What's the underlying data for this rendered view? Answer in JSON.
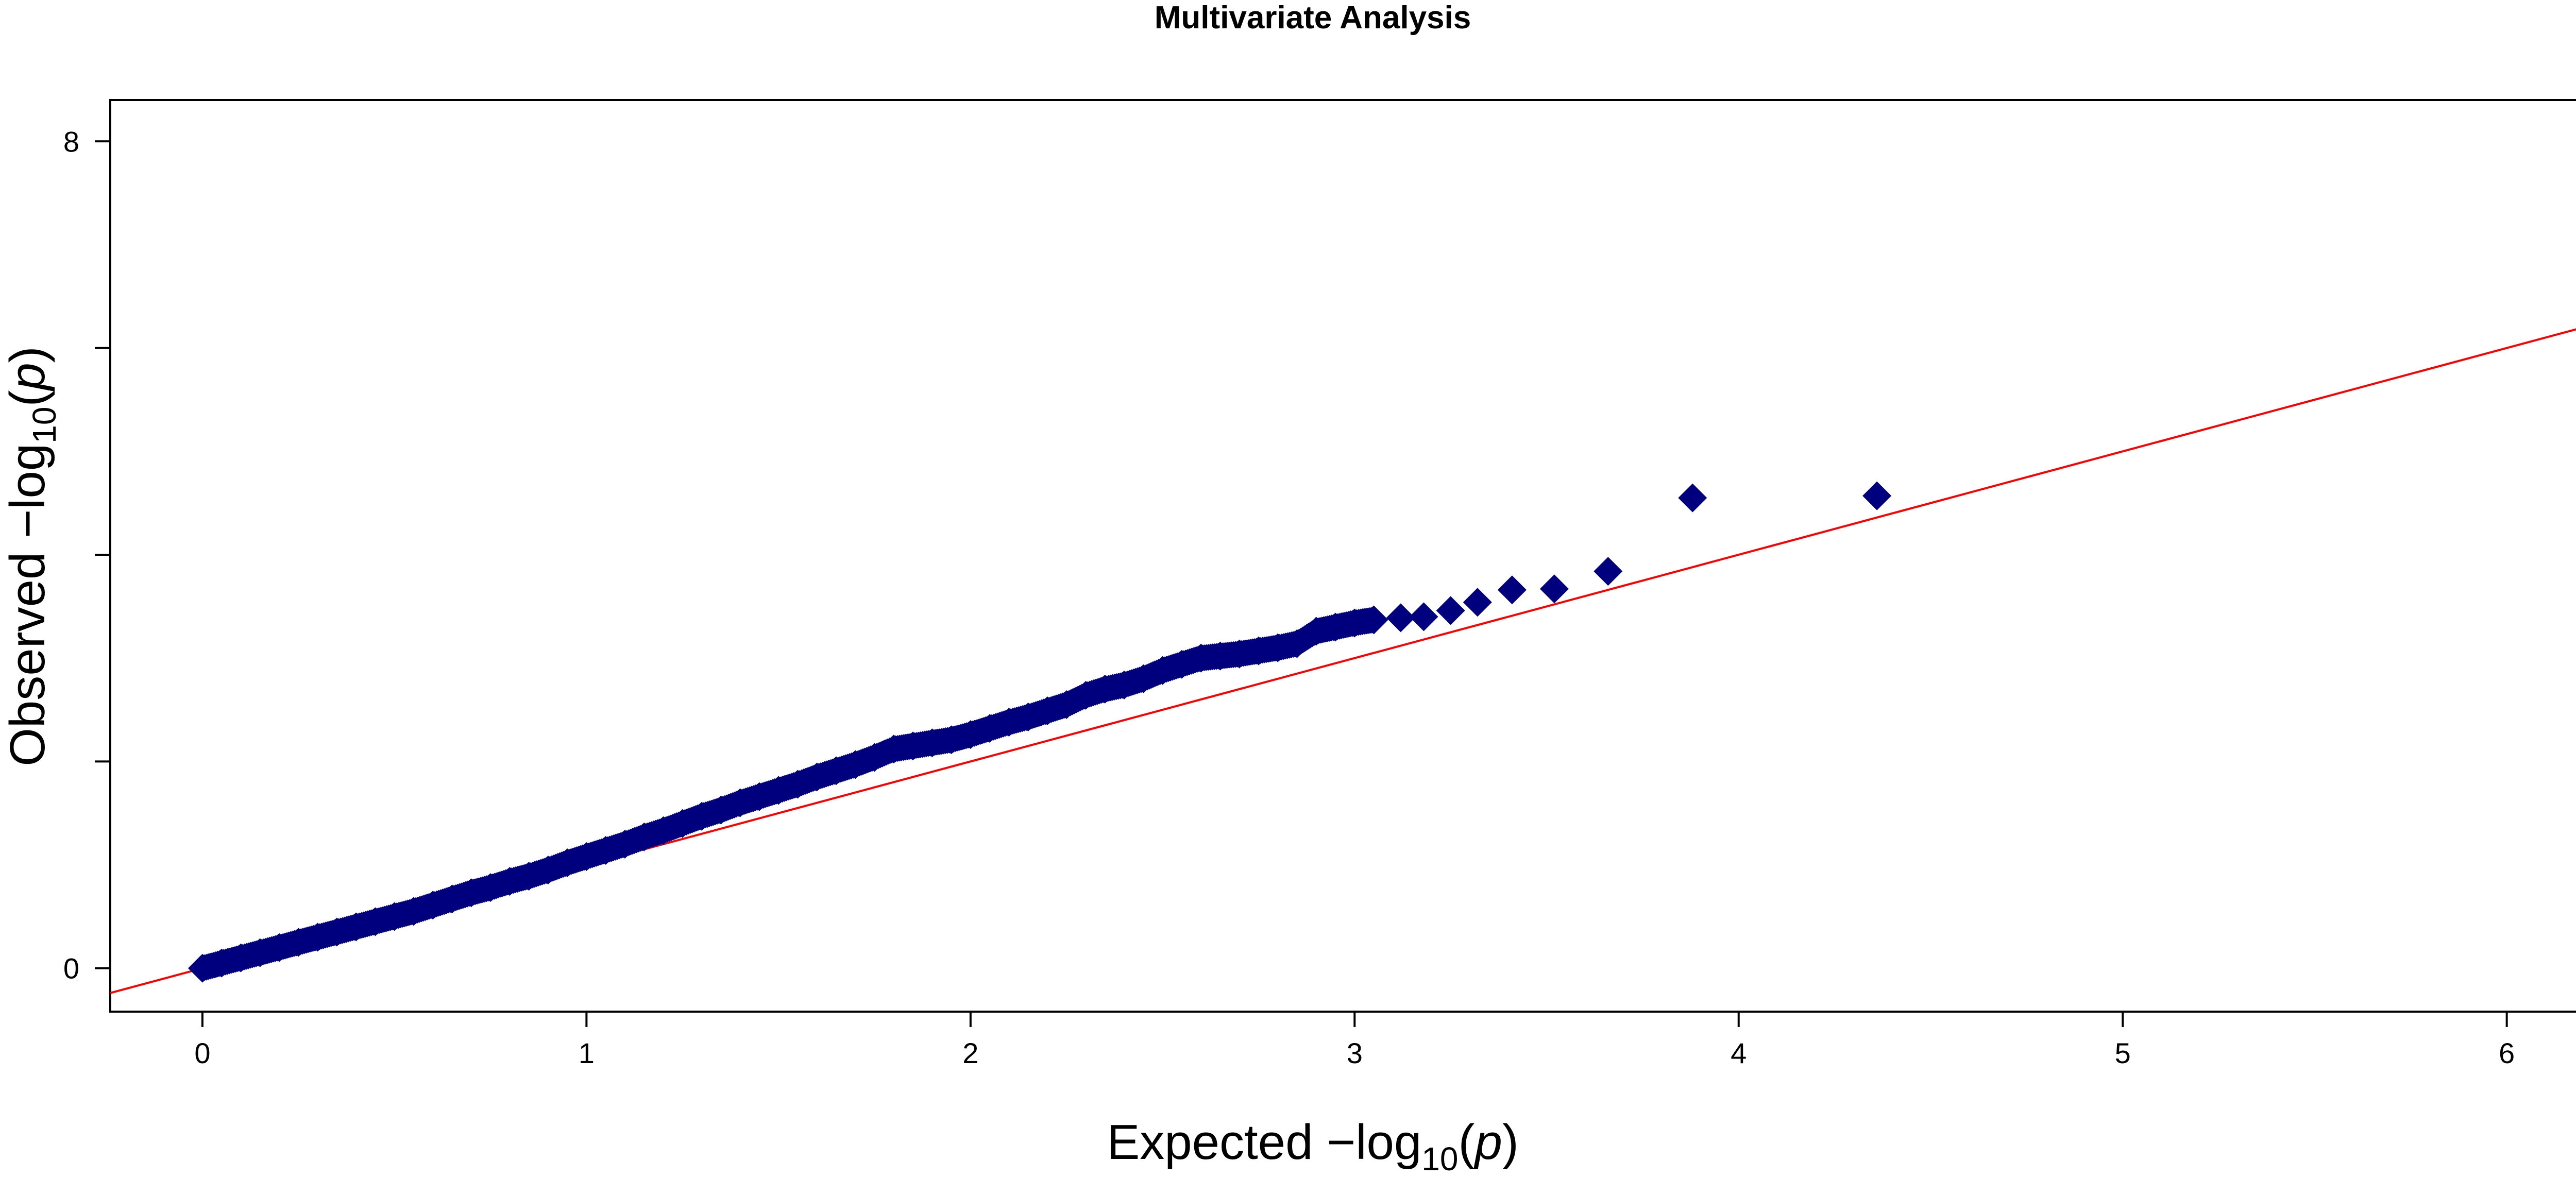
{
  "chart_data": {
    "type": "scatter",
    "title": "Multivariate Analysis",
    "xlabel": {
      "prefix": "Expected  −log",
      "sub": "10",
      "open": "(",
      "var": "p",
      "close": ")"
    },
    "ylabel": {
      "prefix": "Observed  −log",
      "sub": "10",
      "open": "(",
      "var": "p",
      "close": ")"
    },
    "xlim": [
      -0.24,
      6.25
    ],
    "ylim": [
      -0.42,
      8.4
    ],
    "x_ticks": [
      0,
      1,
      2,
      3,
      4,
      5,
      6
    ],
    "x_tick_labels": [
      "0",
      "1",
      "2",
      "3",
      "4",
      "5",
      "6"
    ],
    "y_ticks": [
      0,
      2,
      4,
      6,
      8
    ],
    "y_tick_labels": [
      "0",
      "",
      "",
      "",
      "8"
    ],
    "grid": false,
    "legend": "none",
    "point_color": "#00007f",
    "line_color": "#ff0000",
    "reference_line": {
      "slope": 1,
      "intercept": 0
    },
    "series": [
      {
        "values_note": "",
        "x": [
          0.0,
          0.05,
          0.1,
          0.15,
          0.2,
          0.25,
          0.3,
          0.35,
          0.4,
          0.45,
          0.5,
          0.55,
          0.6,
          0.65,
          0.7,
          0.75,
          0.8,
          0.85,
          0.9,
          0.95,
          1.0,
          1.05,
          1.1,
          1.15,
          1.2,
          1.25,
          1.3,
          1.35,
          1.4,
          1.45,
          1.5,
          1.55,
          1.6,
          1.65,
          1.7,
          1.75,
          1.8,
          1.85,
          1.9,
          1.95,
          2.0,
          2.05,
          2.1,
          2.15,
          2.2,
          2.25,
          2.3,
          2.35,
          2.4,
          2.45,
          2.5,
          2.55,
          2.6,
          2.65,
          2.7,
          2.75,
          2.8,
          2.85,
          2.9,
          2.95,
          3.0,
          3.05,
          3.12,
          3.18,
          3.25,
          3.32,
          3.41,
          3.52,
          3.66,
          3.88,
          4.36
        ],
        "y": [
          0.0,
          0.05,
          0.1,
          0.15,
          0.2,
          0.25,
          0.3,
          0.35,
          0.4,
          0.45,
          0.5,
          0.55,
          0.61,
          0.67,
          0.73,
          0.78,
          0.84,
          0.89,
          0.95,
          1.02,
          1.08,
          1.14,
          1.2,
          1.27,
          1.33,
          1.4,
          1.47,
          1.53,
          1.6,
          1.66,
          1.72,
          1.78,
          1.85,
          1.91,
          1.97,
          2.04,
          2.12,
          2.15,
          2.18,
          2.21,
          2.26,
          2.32,
          2.38,
          2.43,
          2.49,
          2.55,
          2.64,
          2.7,
          2.74,
          2.8,
          2.88,
          2.94,
          3.0,
          3.02,
          3.04,
          3.07,
          3.1,
          3.14,
          3.26,
          3.3,
          3.34,
          3.37,
          3.39,
          3.4,
          3.46,
          3.54,
          3.66,
          3.67,
          3.84,
          4.55,
          4.57
        ]
      }
    ]
  }
}
